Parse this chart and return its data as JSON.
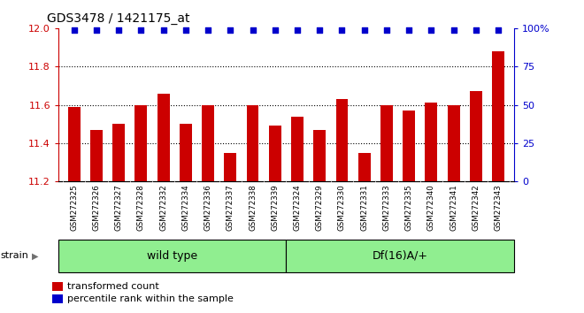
{
  "title": "GDS3478 / 1421175_at",
  "categories": [
    "GSM272325",
    "GSM272326",
    "GSM272327",
    "GSM272328",
    "GSM272332",
    "GSM272334",
    "GSM272336",
    "GSM272337",
    "GSM272338",
    "GSM272339",
    "GSM272324",
    "GSM272329",
    "GSM272330",
    "GSM272331",
    "GSM272333",
    "GSM272335",
    "GSM272340",
    "GSM272341",
    "GSM272342",
    "GSM272343"
  ],
  "bar_values": [
    11.59,
    11.47,
    11.5,
    11.6,
    11.66,
    11.5,
    11.6,
    11.35,
    11.6,
    11.49,
    11.54,
    11.47,
    11.63,
    11.35,
    11.6,
    11.57,
    11.61,
    11.6,
    11.67,
    11.88
  ],
  "ylim": [
    11.2,
    12.0
  ],
  "right_ylim": [
    0,
    100
  ],
  "right_yticks": [
    0,
    25,
    50,
    75,
    100
  ],
  "right_yticklabels": [
    "0",
    "25",
    "50",
    "75",
    "100%"
  ],
  "left_yticks": [
    11.2,
    11.4,
    11.6,
    11.8,
    12.0
  ],
  "dotted_lines": [
    11.4,
    11.6,
    11.8
  ],
  "bar_color": "#cc0000",
  "dot_color": "#0000cc",
  "plot_bg_color": "#ffffff",
  "wild_type_label": "wild type",
  "mutant_label": "Df(16)A/+",
  "wild_type_count": 10,
  "mutant_count": 10,
  "strain_label": "strain",
  "legend_bar_label": "transformed count",
  "legend_dot_label": "percentile rank within the sample",
  "group_bg_color": "#90ee90",
  "xtick_bg_color": "#d3d3d3"
}
